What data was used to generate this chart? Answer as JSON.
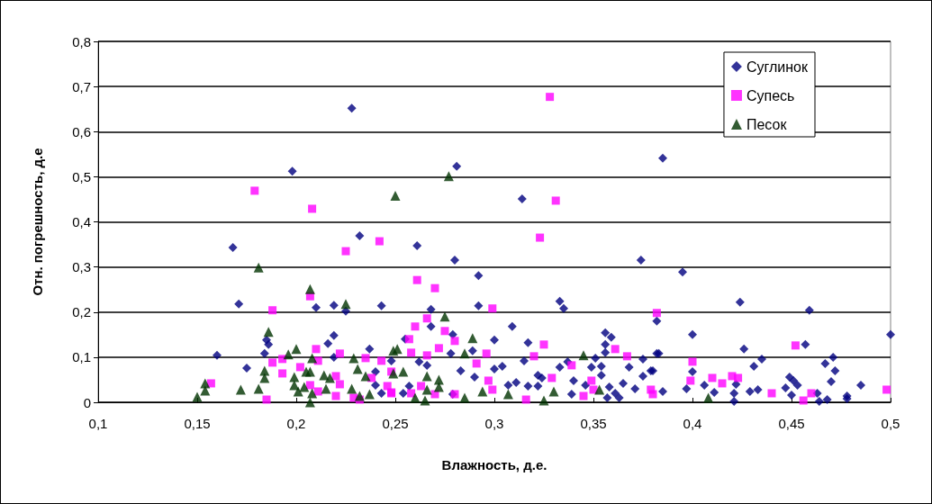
{
  "chart_data": {
    "type": "scatter",
    "xlabel": "Влажность, д.е.",
    "ylabel": "Отн. погрешность, д.е",
    "xlim": [
      0.1,
      0.5
    ],
    "ylim": [
      0,
      0.8
    ],
    "xticks": [
      {
        "value": 0.1,
        "label": "0,1"
      },
      {
        "value": 0.15,
        "label": "0,15"
      },
      {
        "value": 0.2,
        "label": "0,2"
      },
      {
        "value": 0.25,
        "label": "0,25"
      },
      {
        "value": 0.3,
        "label": "0,3"
      },
      {
        "value": 0.35,
        "label": "0,35"
      },
      {
        "value": 0.4,
        "label": "0,4"
      },
      {
        "value": 0.45,
        "label": "0,45"
      },
      {
        "value": 0.5,
        "label": "0,5"
      }
    ],
    "yticks": [
      {
        "value": 0,
        "label": "0"
      },
      {
        "value": 0.1,
        "label": "0,1"
      },
      {
        "value": 0.2,
        "label": "0,2"
      },
      {
        "value": 0.3,
        "label": "0,3"
      },
      {
        "value": 0.4,
        "label": "0,4"
      },
      {
        "value": 0.5,
        "label": "0,5"
      },
      {
        "value": 0.6,
        "label": "0,6"
      },
      {
        "value": 0.7,
        "label": "0,7"
      },
      {
        "value": 0.8,
        "label": "0,8"
      }
    ],
    "grid": "y",
    "legend": "top right",
    "series": [
      {
        "name": "Суглинок",
        "color": "#000080",
        "marker": "diamond",
        "x": [
          0.198,
          0.228,
          0.168,
          0.232,
          0.171,
          0.21,
          0.219,
          0.225,
          0.243,
          0.219,
          0.216,
          0.237,
          0.16,
          0.184,
          0.185,
          0.186,
          0.175,
          0.219,
          0.248,
          0.24,
          0.243,
          0.24,
          0.281,
          0.261,
          0.28,
          0.292,
          0.314,
          0.268,
          0.292,
          0.333,
          0.335,
          0.374,
          0.268,
          0.309,
          0.255,
          0.279,
          0.3,
          0.317,
          0.289,
          0.278,
          0.262,
          0.266,
          0.315,
          0.283,
          0.29,
          0.3,
          0.304,
          0.322,
          0.324,
          0.317,
          0.322,
          0.307,
          0.311,
          0.257,
          0.254,
          0.279,
          0.333,
          0.337,
          0.34,
          0.339,
          0.351,
          0.349,
          0.354,
          0.354,
          0.356,
          0.359,
          0.356,
          0.356,
          0.346,
          0.358,
          0.361,
          0.363,
          0.357,
          0.365,
          0.371,
          0.375,
          0.368,
          0.375,
          0.379,
          0.382,
          0.382,
          0.385,
          0.395,
          0.424,
          0.459,
          0.4,
          0.457,
          0.5,
          0.383,
          0.426,
          0.435,
          0.431,
          0.471,
          0.467,
          0.472,
          0.4,
          0.38,
          0.449,
          0.451,
          0.453,
          0.47,
          0.485,
          0.397,
          0.406,
          0.411,
          0.422,
          0.421,
          0.421,
          0.429,
          0.433,
          0.447,
          0.45,
          0.463,
          0.464,
          0.468,
          0.478,
          0.478,
          0.385
        ],
        "values": [
          0.512,
          0.652,
          0.343,
          0.369,
          0.218,
          0.21,
          0.215,
          0.202,
          0.214,
          0.148,
          0.13,
          0.118,
          0.104,
          0.108,
          0.138,
          0.128,
          0.076,
          0.1,
          0.092,
          0.068,
          0.02,
          0.038,
          0.523,
          0.347,
          0.315,
          0.281,
          0.451,
          0.206,
          0.214,
          0.224,
          0.208,
          0.315,
          0.168,
          0.168,
          0.14,
          0.15,
          0.138,
          0.132,
          0.114,
          0.108,
          0.09,
          0.082,
          0.092,
          0.07,
          0.056,
          0.074,
          0.08,
          0.06,
          0.054,
          0.036,
          0.036,
          0.038,
          0.044,
          0.036,
          0.02,
          0.018,
          0.078,
          0.09,
          0.048,
          0.018,
          0.098,
          0.078,
          0.08,
          0.06,
          0.154,
          0.144,
          0.128,
          0.11,
          0.038,
          0.034,
          0.02,
          0.01,
          0.01,
          0.042,
          0.03,
          0.096,
          0.078,
          0.058,
          0.07,
          0.18,
          0.108,
          0.541,
          0.289,
          0.222,
          0.204,
          0.15,
          0.128,
          0.15,
          0.108,
          0.118,
          0.096,
          0.08,
          0.1,
          0.086,
          0.07,
          0.068,
          0.07,
          0.056,
          0.048,
          0.038,
          0.046,
          0.038,
          0.03,
          0.038,
          0.022,
          0.04,
          0.02,
          0.002,
          0.024,
          0.028,
          0.032,
          0.016,
          0.02,
          0.002,
          0.006,
          0.014,
          0.008,
          0.024
        ]
      },
      {
        "name": "Супесь",
        "color": "#ff00ff",
        "marker": "square",
        "x": [
          0.179,
          0.208,
          0.225,
          0.242,
          0.207,
          0.188,
          0.157,
          0.21,
          0.222,
          0.188,
          0.193,
          0.193,
          0.202,
          0.211,
          0.235,
          0.243,
          0.185,
          0.207,
          0.211,
          0.22,
          0.222,
          0.22,
          0.229,
          0.232,
          0.238,
          0.246,
          0.248,
          0.248,
          0.328,
          0.331,
          0.323,
          0.261,
          0.27,
          0.299,
          0.266,
          0.26,
          0.275,
          0.257,
          0.28,
          0.325,
          0.258,
          0.266,
          0.272,
          0.296,
          0.32,
          0.291,
          0.339,
          0.361,
          0.367,
          0.329,
          0.297,
          0.299,
          0.263,
          0.258,
          0.27,
          0.28,
          0.316,
          0.349,
          0.345,
          0.35,
          0.248,
          0.382,
          0.4,
          0.399,
          0.41,
          0.415,
          0.42,
          0.423,
          0.44,
          0.452,
          0.456,
          0.46,
          0.498,
          0.38,
          0.379
        ],
        "values": [
          0.469,
          0.429,
          0.335,
          0.357,
          0.235,
          0.204,
          0.042,
          0.118,
          0.108,
          0.088,
          0.096,
          0.064,
          0.078,
          0.092,
          0.098,
          0.092,
          0.006,
          0.038,
          0.024,
          0.058,
          0.04,
          0.014,
          0.01,
          0.006,
          0.054,
          0.036,
          0.02,
          0.068,
          0.677,
          0.447,
          0.365,
          0.271,
          0.253,
          0.208,
          0.186,
          0.168,
          0.158,
          0.14,
          0.136,
          0.128,
          0.11,
          0.104,
          0.12,
          0.108,
          0.102,
          0.086,
          0.082,
          0.118,
          0.102,
          0.054,
          0.048,
          0.028,
          0.036,
          0.02,
          0.018,
          0.018,
          0.006,
          0.048,
          0.014,
          0.028,
          0.022,
          0.198,
          0.09,
          0.048,
          0.054,
          0.042,
          0.058,
          0.054,
          0.02,
          0.126,
          0.004,
          0.02,
          0.028,
          0.018,
          0.028
        ]
      },
      {
        "name": "Песок",
        "color": "#003300",
        "marker": "triangle",
        "x": [
          0.181,
          0.186,
          0.2,
          0.196,
          0.207,
          0.225,
          0.208,
          0.229,
          0.231,
          0.235,
          0.214,
          0.217,
          0.205,
          0.207,
          0.184,
          0.184,
          0.181,
          0.172,
          0.154,
          0.154,
          0.15,
          0.199,
          0.199,
          0.201,
          0.204,
          0.208,
          0.207,
          0.215,
          0.228,
          0.232,
          0.237,
          0.249,
          0.249,
          0.25,
          0.277,
          0.275,
          0.289,
          0.251,
          0.285,
          0.254,
          0.266,
          0.272,
          0.266,
          0.272,
          0.26,
          0.265,
          0.285,
          0.294,
          0.307,
          0.325,
          0.33,
          0.345,
          0.353,
          0.408
        ],
        "values": [
          0.299,
          0.156,
          0.118,
          0.106,
          0.251,
          0.218,
          0.098,
          0.098,
          0.074,
          0.058,
          0.06,
          0.054,
          0.068,
          0.068,
          0.07,
          0.054,
          0.03,
          0.028,
          0.042,
          0.026,
          0.012,
          0.056,
          0.038,
          0.024,
          0.034,
          0.02,
          0.0,
          0.03,
          0.03,
          0.014,
          0.018,
          0.114,
          0.064,
          0.458,
          0.501,
          0.19,
          0.142,
          0.118,
          0.108,
          0.068,
          0.058,
          0.05,
          0.028,
          0.034,
          0.01,
          0.004,
          0.01,
          0.024,
          0.018,
          0.004,
          0.024,
          0.104,
          0.028,
          0.01
        ]
      }
    ]
  }
}
